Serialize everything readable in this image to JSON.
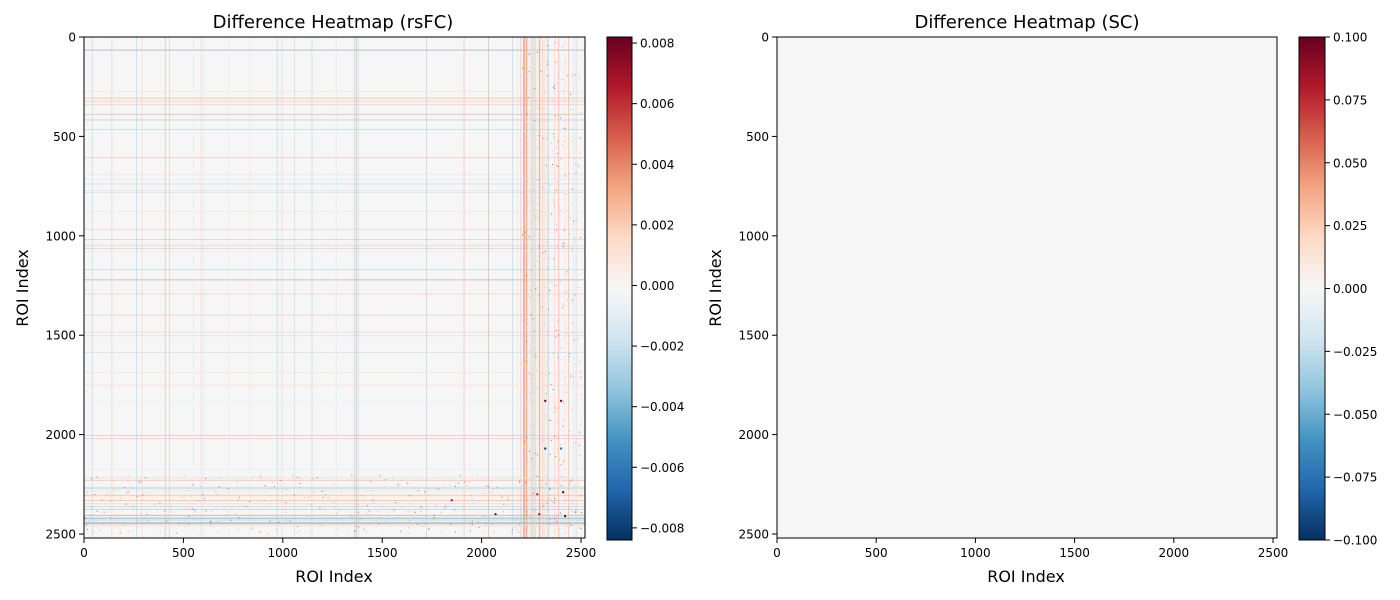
{
  "chart_data": [
    {
      "type": "heatmap",
      "title": "Difference Heatmap (rsFC)",
      "xlabel": "ROI Index",
      "ylabel": "ROI Index",
      "xlim": [
        0,
        2520
      ],
      "ylim": [
        2520,
        0
      ],
      "x_ticks": [
        0,
        500,
        1000,
        1500,
        2000,
        2500
      ],
      "y_ticks": [
        0,
        500,
        1000,
        1500,
        2000,
        2500
      ],
      "colormap": "RdBu_r",
      "colorbar": {
        "vmin": -0.0084,
        "vmax": 0.0082,
        "ticks": [
          -0.008,
          -0.006,
          -0.004,
          -0.002,
          0.0,
          0.002,
          0.004,
          0.006,
          0.008
        ],
        "tick_labels": [
          "−0.008",
          "−0.006",
          "−0.004",
          "−0.002",
          "0.000",
          "0.002",
          "0.004",
          "0.006",
          "0.008"
        ]
      },
      "background_value": 0.0
    },
    {
      "type": "heatmap",
      "title": "Difference Heatmap (SC)",
      "xlabel": "ROI Index",
      "ylabel": "ROI Index",
      "xlim": [
        0,
        2520
      ],
      "ylim": [
        2520,
        0
      ],
      "x_ticks": [
        0,
        500,
        1000,
        1500,
        2000,
        2500
      ],
      "y_ticks": [
        0,
        500,
        1000,
        1500,
        2000,
        2500
      ],
      "colormap": "RdBu_r",
      "colorbar": {
        "vmin": -0.1,
        "vmax": 0.1,
        "ticks": [
          -0.1,
          -0.075,
          -0.05,
          -0.025,
          0.0,
          0.025,
          0.05,
          0.075,
          0.1
        ],
        "tick_labels": [
          "−0.100",
          "−0.075",
          "−0.050",
          "−0.025",
          "0.000",
          "0.025",
          "0.050",
          "0.075",
          "0.100"
        ]
      },
      "background_value": 0.0
    }
  ]
}
